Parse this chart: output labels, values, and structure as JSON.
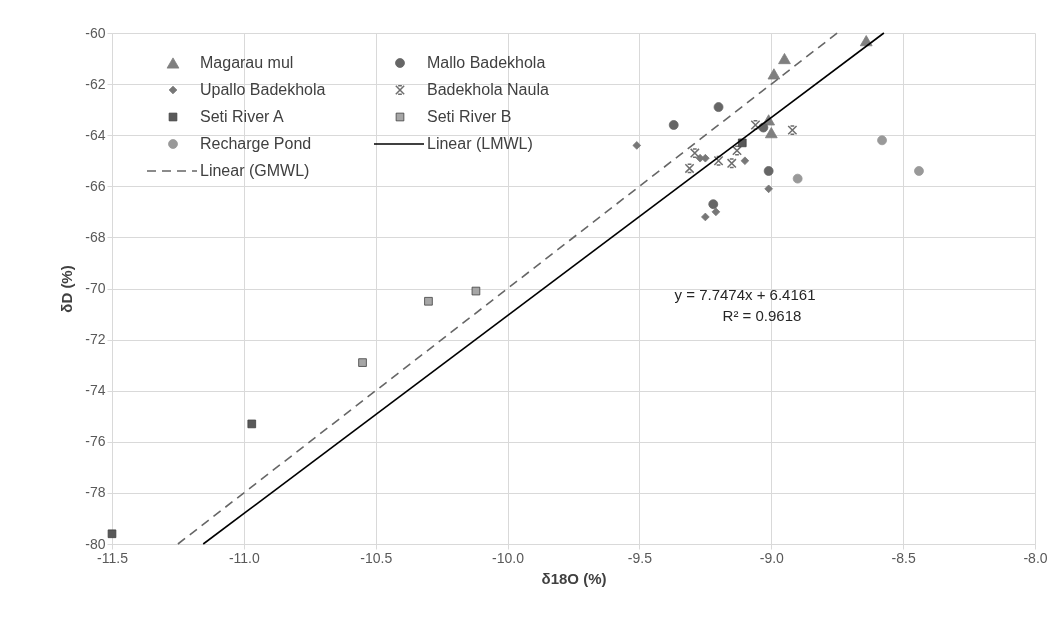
{
  "chart_data": {
    "type": "scatter",
    "xlabel": "δ18O (%)",
    "ylabel": "δD (%)",
    "xlim": [
      -11.5,
      -8.0
    ],
    "ylim": [
      -80,
      -60
    ],
    "xticks": [
      {
        "value": -11.5,
        "label": "-11.5"
      },
      {
        "value": -11.0,
        "label": "-11.0"
      },
      {
        "value": -10.5,
        "label": "-10.5"
      },
      {
        "value": -10.0,
        "label": "-10.0"
      },
      {
        "value": -9.5,
        "label": "-9.5"
      },
      {
        "value": -9.0,
        "label": "-9.0"
      },
      {
        "value": -8.5,
        "label": "-8.5"
      },
      {
        "value": -8.0,
        "label": "-8.0"
      }
    ],
    "yticks": [
      -80,
      -78,
      -76,
      -74,
      -72,
      -70,
      -68,
      -66,
      -64,
      -62,
      -60
    ],
    "grid": true,
    "legend": "top left",
    "annotations": [
      "y = 7.7474x + 6.4161",
      "R² = 0.9618"
    ],
    "series": [
      {
        "name": "Magarau mul",
        "type": "scatter",
        "marker": "triangle",
        "color": "#7f7f7f",
        "x": [
          -8.64,
          -8.95,
          -8.99,
          -9.0,
          -9.01
        ],
        "values": [
          -60.3,
          -61.0,
          -61.6,
          -63.9,
          -63.4
        ]
      },
      {
        "name": "Mallo Badekhola",
        "type": "scatter",
        "marker": "circle",
        "color": "#666666",
        "x": [
          -9.2,
          -9.37,
          -9.01,
          -9.22,
          -9.03
        ],
        "values": [
          -62.9,
          -63.6,
          -65.4,
          -66.7,
          -63.7
        ]
      },
      {
        "name": "Upallo Badekhola",
        "type": "scatter",
        "marker": "diamond",
        "color": "#777777",
        "x": [
          -9.51,
          -9.01,
          -9.1,
          -9.25,
          -9.21,
          -9.27,
          -9.25
        ],
        "values": [
          -64.4,
          -66.1,
          -65.0,
          -67.2,
          -67.0,
          -64.9,
          -64.9
        ]
      },
      {
        "name": "Badekhola Naula",
        "type": "scatter",
        "marker": "cross",
        "color": "#6e6e6e",
        "x": [
          -8.92,
          -9.06,
          -9.29,
          -9.31,
          -9.2,
          -9.15,
          -9.13
        ],
        "values": [
          -63.8,
          -63.6,
          -64.7,
          -65.3,
          -65.0,
          -65.1,
          -64.6
        ]
      },
      {
        "name": "Seti River A",
        "type": "scatter",
        "marker": "square",
        "color": "#595959",
        "x": [
          -9.11,
          -10.97,
          -11.5
        ],
        "values": [
          -64.3,
          -75.3,
          -79.6
        ]
      },
      {
        "name": "Seti River B",
        "type": "scatter",
        "marker": "square",
        "color": "#a6a6a6",
        "x": [
          -10.12,
          -10.3,
          -10.55
        ],
        "values": [
          -70.1,
          -70.5,
          -72.9
        ]
      },
      {
        "name": "Recharge Pond",
        "type": "scatter",
        "marker": "circle",
        "color": "#999999",
        "x": [
          -8.58,
          -8.44,
          -8.9
        ],
        "values": [
          -64.2,
          -65.4,
          -65.7
        ]
      },
      {
        "name": "Linear (LMWL)",
        "type": "line",
        "line_style": "solid",
        "color": "#000000",
        "x": [
          -11.154,
          -8.573
        ],
        "values": [
          -80,
          -60
        ]
      },
      {
        "name": "Linear (GMWL)",
        "type": "line",
        "line_style": "dashed",
        "color": "#666666",
        "x": [
          -11.25,
          -8.75
        ],
        "values": [
          -80,
          -60
        ]
      }
    ]
  }
}
